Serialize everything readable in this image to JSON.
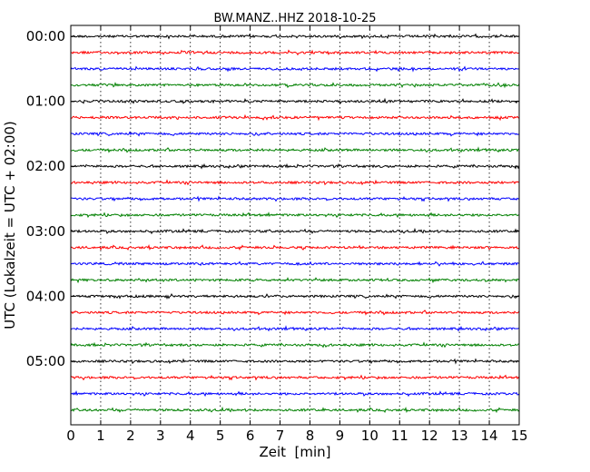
{
  "chart_data": {
    "type": "line",
    "title": "BW.MANZ..HHZ 2018-10-25",
    "xlabel": "Zeit  [min]",
    "ylabel": "UTC (Lokalzeit = UTC + 02:00)",
    "xlim": [
      0,
      15
    ],
    "x_ticks": [
      "0",
      "1",
      "2",
      "3",
      "4",
      "5",
      "6",
      "7",
      "8",
      "9",
      "10",
      "11",
      "12",
      "13",
      "14",
      "15"
    ],
    "y_ticks": [
      "00:00",
      "01:00",
      "02:00",
      "03:00",
      "04:00",
      "05:00"
    ],
    "grid": true,
    "row_interval_minutes": 15,
    "trace_colors": [
      "#000000",
      "#ff0000",
      "#0000ff",
      "#008000"
    ],
    "traces": [
      {
        "start": "00:00",
        "color": "#000000"
      },
      {
        "start": "00:15",
        "color": "#ff0000"
      },
      {
        "start": "00:30",
        "color": "#0000ff"
      },
      {
        "start": "00:45",
        "color": "#008000"
      },
      {
        "start": "01:00",
        "color": "#000000"
      },
      {
        "start": "01:15",
        "color": "#ff0000"
      },
      {
        "start": "01:30",
        "color": "#0000ff"
      },
      {
        "start": "01:45",
        "color": "#008000"
      },
      {
        "start": "02:00",
        "color": "#000000"
      },
      {
        "start": "02:15",
        "color": "#ff0000"
      },
      {
        "start": "02:30",
        "color": "#0000ff"
      },
      {
        "start": "02:45",
        "color": "#008000"
      },
      {
        "start": "03:00",
        "color": "#000000"
      },
      {
        "start": "03:15",
        "color": "#ff0000"
      },
      {
        "start": "03:30",
        "color": "#0000ff"
      },
      {
        "start": "03:45",
        "color": "#008000"
      },
      {
        "start": "04:00",
        "color": "#000000"
      },
      {
        "start": "04:15",
        "color": "#ff0000"
      },
      {
        "start": "04:30",
        "color": "#0000ff"
      },
      {
        "start": "04:45",
        "color": "#008000"
      },
      {
        "start": "05:00",
        "color": "#000000"
      },
      {
        "start": "05:15",
        "color": "#ff0000"
      },
      {
        "start": "05:30",
        "color": "#0000ff"
      },
      {
        "start": "05:45",
        "color": "#008000"
      }
    ]
  }
}
